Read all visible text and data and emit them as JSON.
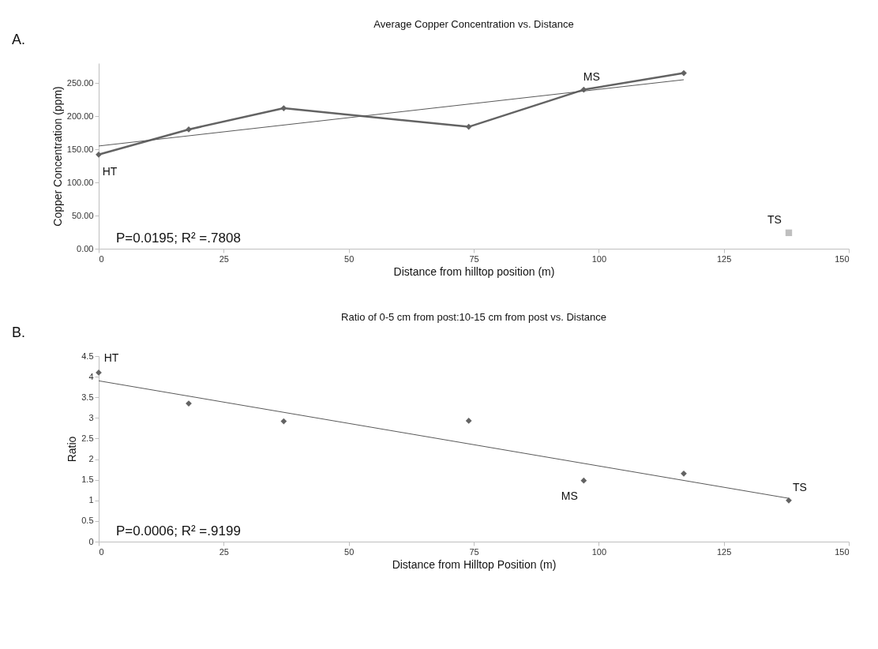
{
  "chart_data": [
    {
      "type": "line",
      "title": "Average Copper Concentration vs. Distance",
      "xlabel": "Distance from hilltop position (m)",
      "ylabel": "Copper Concentration (ppm)",
      "xlim": [
        0,
        150
      ],
      "xticks": [
        0,
        25,
        50,
        75,
        100,
        125,
        150
      ],
      "ylim": [
        0,
        280
      ],
      "yticks": [
        {
          "value": 0,
          "label": "0.00"
        },
        {
          "value": 50,
          "label": "50.00"
        },
        {
          "value": 100,
          "label": "100.00"
        },
        {
          "value": 150,
          "label": "150.00"
        },
        {
          "value": 200,
          "label": "200.00"
        },
        {
          "value": 250,
          "label": "250.00"
        }
      ],
      "grid": false,
      "series": [
        {
          "color": "#636363",
          "marker": "diamond",
          "x": [
            0,
            18,
            37,
            74,
            97,
            117
          ],
          "values": [
            142,
            180,
            212,
            184,
            240,
            265
          ]
        },
        {
          "type": "scatter",
          "color": "#bfbfbf",
          "marker": "square",
          "x": [
            138
          ],
          "values": [
            24
          ]
        },
        {
          "type": "line",
          "color": "#595959",
          "marker": "none",
          "x": [
            0,
            117
          ],
          "values": [
            155,
            255
          ]
        }
      ],
      "annotations": [
        "A.",
        "P=0.0195; R² =.7808",
        {
          "text": "HT",
          "x": 0,
          "y": 142
        },
        {
          "text": "MS",
          "x": 97,
          "y": 240
        },
        {
          "text": "TS",
          "x": 138,
          "y": 24
        }
      ]
    },
    {
      "type": "scatter",
      "title": "Ratio of 0-5 cm from post:10-15 cm from post vs. Distance",
      "xlabel": "Distance from Hilltop Position (m)",
      "ylabel": "Ratio",
      "xlim": [
        0,
        150
      ],
      "xticks": [
        0,
        25,
        50,
        75,
        100,
        125,
        150
      ],
      "ylim": [
        0,
        4.5
      ],
      "yticks": [
        0,
        0.5,
        1,
        1.5,
        2,
        2.5,
        3,
        3.5,
        4,
        4.5
      ],
      "grid": false,
      "series": [
        {
          "color": "#636363",
          "marker": "diamond",
          "x": [
            0,
            18,
            37,
            74,
            97,
            117,
            138
          ],
          "values": [
            4.1,
            3.35,
            2.92,
            2.93,
            1.48,
            1.65,
            1.0
          ]
        },
        {
          "type": "line",
          "color": "#595959",
          "marker": "none",
          "x": [
            0,
            138
          ],
          "values": [
            3.9,
            1.05
          ]
        }
      ],
      "annotations": [
        "B.",
        "P=0.0006; R² =.9199",
        {
          "text": "HT",
          "x": 0,
          "y": 4.1
        },
        {
          "text": "MS",
          "x": 97,
          "y": 1.48
        },
        {
          "text": "TS",
          "x": 138,
          "y": 1.0
        }
      ]
    }
  ]
}
